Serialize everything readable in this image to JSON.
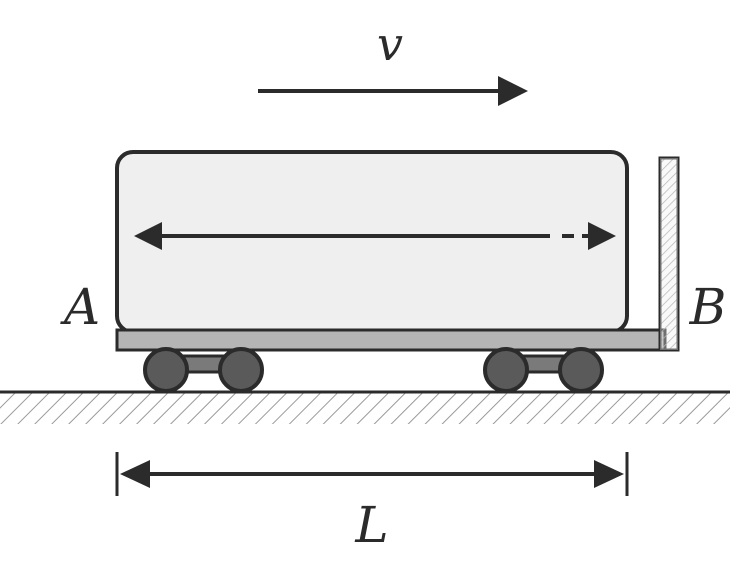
{
  "labels": {
    "velocity": "v",
    "left_end": "A",
    "right_end": "B",
    "length": "L"
  },
  "colors": {
    "stroke": "#2b2b2b",
    "car_fill": "#efefef",
    "platform_fill": "#b5b5b5",
    "wheel_fill": "#5a5a5a",
    "ground_hatch": "#9a9a9a"
  }
}
